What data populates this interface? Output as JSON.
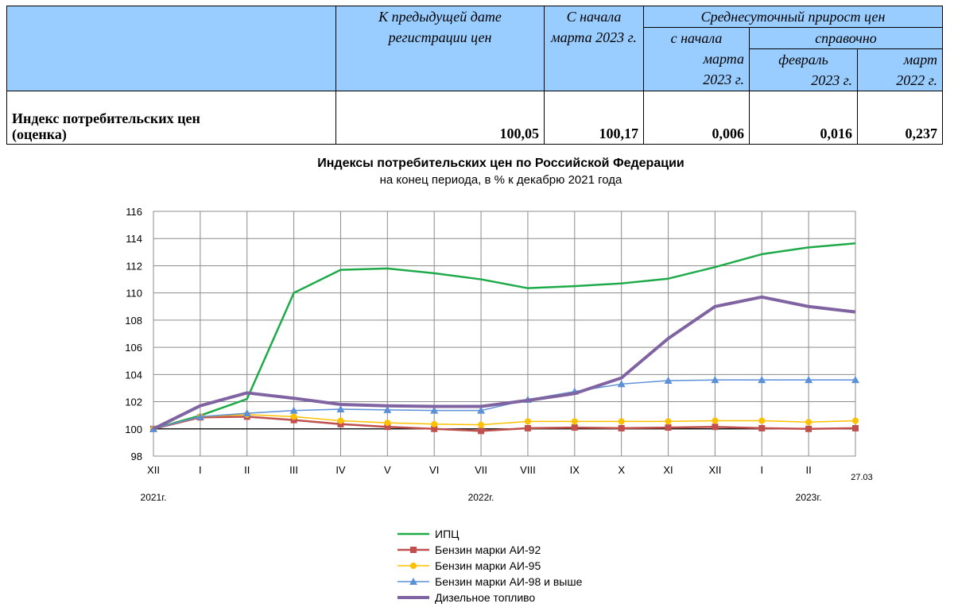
{
  "table": {
    "header_prev_date": "К предыдущей дате регистрации цен",
    "header_since_march": "С начала марта 2023 г.",
    "header_avg_daily": "Среднесуточный прирост цен",
    "header_since_march_sub1": "с начала",
    "header_since_march_sub2": "марта",
    "header_since_march_sub3": "2023 г.",
    "header_reference": "справочно",
    "header_feb_1": "февраль",
    "header_feb_2": "2023 г.",
    "header_mar_1": "март",
    "header_mar_2": "2022 г.",
    "row_label_1": "Индекс потребительских цен",
    "row_label_2": "(оценка)",
    "values": [
      "100,05",
      "100,17",
      "0,006",
      "0,016",
      "0,237"
    ],
    "header_color": "#99ccff"
  },
  "chart_data": {
    "type": "line",
    "title": "Индексы потребительских цен по Российской Федерации",
    "subtitle": "на конец периода, в % к декабрю 2021 года",
    "categories": [
      "XII",
      "I",
      "II",
      "III",
      "IV",
      "V",
      "VI",
      "VII",
      "VIII",
      "IX",
      "X",
      "XI",
      "XII",
      "I",
      "II",
      "27.03"
    ],
    "year_labels": [
      {
        "text": "2021г.",
        "at_index": 0
      },
      {
        "text": "2022г.",
        "at_index": 7
      },
      {
        "text": "2023г.",
        "at_index": 14
      }
    ],
    "ylim": [
      98,
      116
    ],
    "yticks": [
      98,
      100,
      102,
      104,
      106,
      108,
      110,
      112,
      114,
      116
    ],
    "grid": true,
    "baseline": 100,
    "legend_position": "bottom",
    "series": [
      {
        "name": "ИПЦ",
        "color": "#1faa4a",
        "marker": "none",
        "width": 2.5,
        "values": [
          100,
          100.98,
          102.2,
          110.0,
          111.7,
          111.8,
          111.45,
          111.0,
          110.35,
          110.5,
          110.7,
          111.05,
          111.9,
          112.85,
          113.35,
          113.65
        ]
      },
      {
        "name": "Бензин марки АИ-92",
        "color": "#c0504d",
        "marker": "square",
        "width": 2.5,
        "values": [
          100,
          100.85,
          100.9,
          100.65,
          100.35,
          100.15,
          100.0,
          99.85,
          100.05,
          100.1,
          100.05,
          100.1,
          100.15,
          100.05,
          100.0,
          100.05
        ]
      },
      {
        "name": "Бензин марки АИ-95",
        "color": "#ffc000",
        "marker": "circle",
        "width": 1.5,
        "values": [
          100,
          100.9,
          101.05,
          100.9,
          100.6,
          100.45,
          100.35,
          100.3,
          100.55,
          100.55,
          100.55,
          100.55,
          100.6,
          100.6,
          100.5,
          100.6
        ]
      },
      {
        "name": "Бензин марки АИ-98 и выше",
        "color": "#5b8fd6",
        "marker": "triangle",
        "width": 1.5,
        "values": [
          100,
          100.9,
          101.15,
          101.35,
          101.45,
          101.4,
          101.35,
          101.35,
          102.15,
          102.75,
          103.3,
          103.55,
          103.6,
          103.6,
          103.6,
          103.6
        ]
      },
      {
        "name": "Дизельное топливо",
        "color": "#8064a2",
        "marker": "none",
        "width": 4,
        "values": [
          100,
          101.7,
          102.65,
          102.25,
          101.8,
          101.7,
          101.65,
          101.65,
          102.1,
          102.6,
          103.75,
          106.65,
          109.0,
          109.7,
          109.0,
          108.6
        ]
      }
    ]
  }
}
